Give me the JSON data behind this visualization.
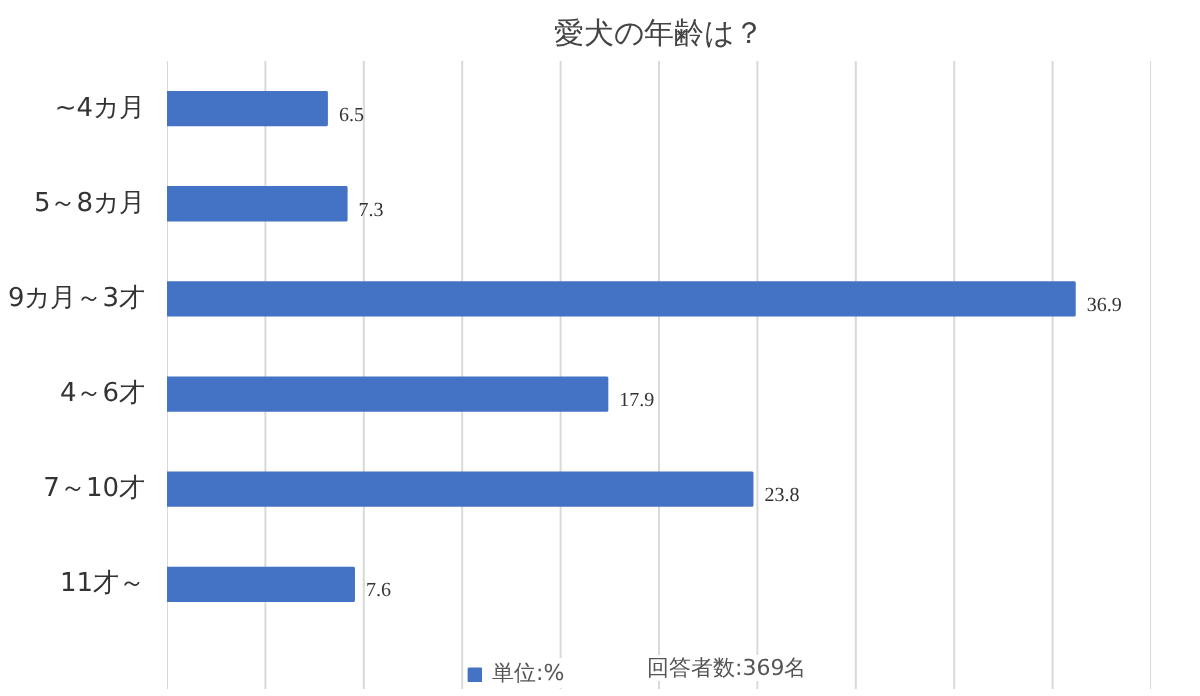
{
  "chart_data": {
    "type": "bar",
    "orientation": "horizontal",
    "title": "愛犬の年齢は？",
    "categories": [
      "~4カ月",
      "5～8カ月",
      "9カ月～3才",
      "4～6才",
      "7～10才",
      "11才～"
    ],
    "series": [
      {
        "name": "単位:%",
        "color": "#4472c4",
        "values": [
          6.5,
          7.3,
          36.9,
          17.9,
          23.8,
          7.6
        ]
      }
    ],
    "data_labels": true,
    "xlim": [
      0,
      40
    ],
    "xticks": [
      {
        "value": 0,
        "label": null
      },
      {
        "value": 4,
        "label": null
      },
      {
        "value": 8,
        "label": null
      },
      {
        "value": 12,
        "label": null
      },
      {
        "value": 16,
        "label": null
      },
      {
        "value": 20,
        "label": null
      },
      {
        "value": 24,
        "label": null
      },
      {
        "value": 28,
        "label": null
      },
      {
        "value": 32,
        "label": null
      },
      {
        "value": 36,
        "label": null
      },
      {
        "value": 40,
        "label": null
      }
    ],
    "tick_labels": "y",
    "grid": "x",
    "legend": "bottom",
    "annotations": [
      "回答者数:369名"
    ]
  }
}
